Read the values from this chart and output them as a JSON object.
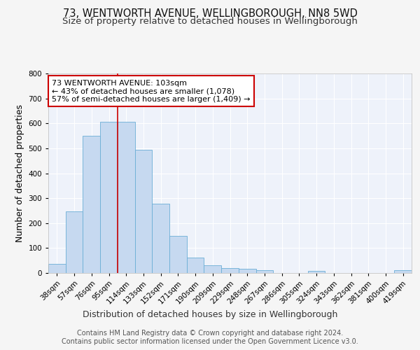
{
  "title": "73, WENTWORTH AVENUE, WELLINGBOROUGH, NN8 5WD",
  "subtitle": "Size of property relative to detached houses in Wellingborough",
  "xlabel": "Distribution of detached houses by size in Wellingborough",
  "ylabel": "Number of detached properties",
  "bar_labels": [
    "38sqm",
    "57sqm",
    "76sqm",
    "95sqm",
    "114sqm",
    "133sqm",
    "152sqm",
    "171sqm",
    "190sqm",
    "209sqm",
    "229sqm",
    "248sqm",
    "267sqm",
    "286sqm",
    "305sqm",
    "324sqm",
    "343sqm",
    "362sqm",
    "381sqm",
    "400sqm",
    "419sqm"
  ],
  "bar_values": [
    37,
    248,
    549,
    605,
    605,
    493,
    278,
    148,
    62,
    32,
    20,
    17,
    12,
    0,
    0,
    8,
    0,
    0,
    0,
    0,
    10
  ],
  "bar_color": "#c6d9f0",
  "bar_edge_color": "#6baed6",
  "annotation_box_text": "73 WENTWORTH AVENUE: 103sqm\n← 43% of detached houses are smaller (1,078)\n57% of semi-detached houses are larger (1,409) →",
  "annotation_box_color": "#ffffff",
  "annotation_box_edge_color": "#cc0000",
  "vline_x": 3.5,
  "vline_color": "#cc0000",
  "ylim": [
    0,
    800
  ],
  "yticks": [
    0,
    100,
    200,
    300,
    400,
    500,
    600,
    700,
    800
  ],
  "footer_text": "Contains HM Land Registry data © Crown copyright and database right 2024.\nContains public sector information licensed under the Open Government Licence v3.0.",
  "fig_bg_color": "#f5f5f5",
  "plot_bg_color": "#eef2fa",
  "grid_color": "#ffffff",
  "title_fontsize": 10.5,
  "subtitle_fontsize": 9.5,
  "axis_label_fontsize": 9,
  "tick_fontsize": 7.5,
  "annotation_fontsize": 8,
  "footer_fontsize": 7
}
